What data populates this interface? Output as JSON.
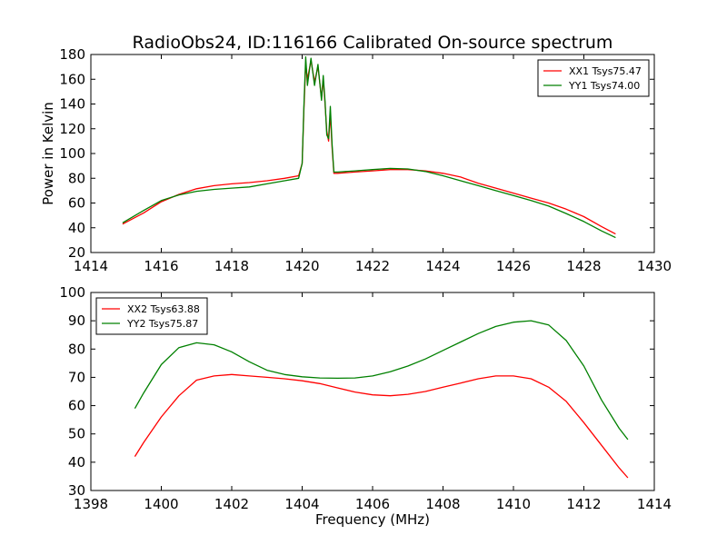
{
  "title": "RadioObs24, ID:116166 Calibrated On-source spectrum",
  "chart_data": [
    {
      "type": "line",
      "title": "RadioObs24, ID:116166 Calibrated On-source spectrum",
      "xlabel": "",
      "ylabel": "Power in Kelvin",
      "xlim": [
        1414,
        1430
      ],
      "ylim": [
        20,
        180
      ],
      "x_ticks": [
        "1414",
        "1416",
        "1418",
        "1420",
        "1422",
        "1424",
        "1426",
        "1428",
        "1430"
      ],
      "y_ticks": [
        "20",
        "40",
        "60",
        "80",
        "100",
        "120",
        "140",
        "160",
        "180"
      ],
      "legend_position": "top-right",
      "grid": false,
      "series": [
        {
          "name": "XX1 Tsys75.47",
          "color": "#ff0000",
          "x": [
            1414.9,
            1415.5,
            1416.0,
            1416.5,
            1417.0,
            1417.5,
            1418.0,
            1418.5,
            1419.0,
            1419.5,
            1419.9,
            1420.0,
            1420.05,
            1420.1,
            1420.15,
            1420.25,
            1420.35,
            1420.45,
            1420.55,
            1420.6,
            1420.65,
            1420.7,
            1420.75,
            1420.8,
            1420.85,
            1420.9,
            1421.0,
            1421.5,
            1422.0,
            1422.5,
            1423.0,
            1423.5,
            1424.0,
            1424.5,
            1425.0,
            1425.5,
            1426.0,
            1426.5,
            1427.0,
            1427.5,
            1428.0,
            1428.5,
            1428.9
          ],
          "values": [
            43,
            52,
            61,
            67,
            71.5,
            74,
            75.5,
            76.5,
            78,
            80,
            82,
            92,
            135,
            172,
            160,
            175,
            158,
            170,
            145,
            160,
            140,
            118,
            110,
            132,
            105,
            84,
            84,
            85,
            86,
            87,
            87,
            86,
            84,
            81,
            76,
            72,
            68,
            64,
            60,
            55,
            49,
            41,
            35
          ]
        },
        {
          "name": "YY1 Tsys74.00",
          "color": "#008000",
          "x": [
            1414.9,
            1415.5,
            1416.0,
            1416.5,
            1417.0,
            1417.5,
            1418.0,
            1418.5,
            1419.0,
            1419.5,
            1419.9,
            1420.0,
            1420.05,
            1420.1,
            1420.15,
            1420.25,
            1420.35,
            1420.45,
            1420.55,
            1420.6,
            1420.65,
            1420.7,
            1420.75,
            1420.8,
            1420.85,
            1420.9,
            1421.0,
            1421.5,
            1422.0,
            1422.5,
            1423.0,
            1423.5,
            1424.0,
            1424.5,
            1425.0,
            1425.5,
            1426.0,
            1426.5,
            1427.0,
            1427.5,
            1428.0,
            1428.5,
            1428.9
          ],
          "values": [
            44,
            54,
            62,
            66.5,
            69.5,
            71,
            72,
            73,
            75.5,
            78,
            80,
            92,
            138,
            178,
            155,
            177,
            155,
            172,
            143,
            163,
            142,
            115,
            112,
            138,
            108,
            85,
            85,
            86,
            87,
            88,
            87.5,
            85.5,
            82,
            78,
            74,
            70,
            66,
            62,
            57.5,
            51.5,
            45,
            37.5,
            32
          ]
        }
      ]
    },
    {
      "type": "line",
      "title": "",
      "xlabel": "Frequency (MHz)",
      "ylabel": "",
      "xlim": [
        1398,
        1414
      ],
      "ylim": [
        30,
        100
      ],
      "x_ticks": [
        "1398",
        "1400",
        "1402",
        "1404",
        "1406",
        "1408",
        "1410",
        "1412",
        "1414"
      ],
      "y_ticks": [
        "30",
        "40",
        "50",
        "60",
        "70",
        "80",
        "90",
        "100"
      ],
      "legend_position": "top-left",
      "grid": false,
      "series": [
        {
          "name": "XX2 Tsys63.88",
          "color": "#ff0000",
          "x": [
            1399.25,
            1399.5,
            1400.0,
            1400.5,
            1401.0,
            1401.5,
            1402.0,
            1402.5,
            1403.0,
            1403.5,
            1404.0,
            1404.5,
            1405.0,
            1405.5,
            1406.0,
            1406.5,
            1407.0,
            1407.5,
            1408.0,
            1408.5,
            1409.0,
            1409.5,
            1410.0,
            1410.5,
            1411.0,
            1411.5,
            1412.0,
            1412.5,
            1413.0,
            1413.25
          ],
          "values": [
            42,
            47,
            56,
            63.5,
            69,
            70.5,
            71,
            70.5,
            70,
            69.5,
            68.8,
            67.8,
            66.3,
            64.8,
            63.8,
            63.5,
            64,
            65,
            66.5,
            68,
            69.5,
            70.5,
            70.5,
            69.5,
            66.5,
            61.5,
            54,
            46,
            38,
            34.5
          ]
        },
        {
          "name": "YY2 Tsys75.87",
          "color": "#008000",
          "x": [
            1399.25,
            1399.5,
            1400.0,
            1400.5,
            1401.0,
            1401.5,
            1402.0,
            1402.5,
            1403.0,
            1403.5,
            1404.0,
            1404.5,
            1405.0,
            1405.5,
            1406.0,
            1406.5,
            1407.0,
            1407.5,
            1408.0,
            1408.5,
            1409.0,
            1409.5,
            1410.0,
            1410.5,
            1411.0,
            1411.5,
            1412.0,
            1412.5,
            1413.0,
            1413.25
          ],
          "values": [
            59,
            64.5,
            74.5,
            80.5,
            82.2,
            81.5,
            79,
            75.5,
            72.5,
            71,
            70.2,
            69.8,
            69.7,
            69.8,
            70.5,
            72,
            74,
            76.5,
            79.5,
            82.5,
            85.5,
            88,
            89.5,
            90,
            88.5,
            83,
            74,
            62,
            52,
            48
          ]
        }
      ]
    }
  ]
}
